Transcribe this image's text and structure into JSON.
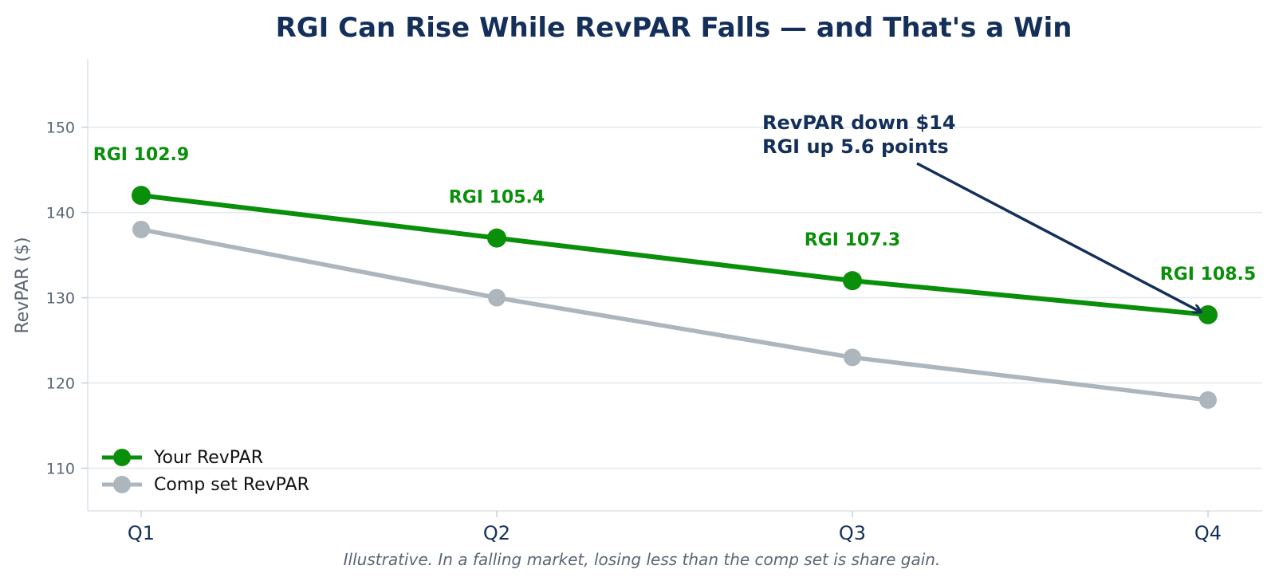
{
  "chart_data": {
    "type": "line",
    "title": "RGI Can Rise While RevPAR Falls — and That's a Win",
    "xlabel": "",
    "ylabel": "RevPAR ($)",
    "categories": [
      "Q1",
      "Q2",
      "Q3",
      "Q4"
    ],
    "ylim": [
      105,
      158
    ],
    "yticks": [
      110,
      120,
      130,
      140,
      150
    ],
    "grid": "horizontal",
    "legend_position": "lower-left",
    "series": [
      {
        "name": "Your RevPAR",
        "values": [
          142,
          137,
          132,
          128
        ],
        "color": "#0a8f0a"
      },
      {
        "name": "Comp set RevPAR",
        "values": [
          138,
          130,
          123,
          118
        ],
        "color": "#adb6bd"
      }
    ],
    "data_labels": [
      "RGI 102.9",
      "RGI 105.4",
      "RGI 107.3",
      "RGI 108.5"
    ],
    "annotation": {
      "lines": [
        "RevPAR down $14",
        "RGI up 5.6 points"
      ],
      "points_to": "Q4"
    },
    "footnote": "Illustrative. In a falling market, losing less than the comp set is share gain."
  }
}
